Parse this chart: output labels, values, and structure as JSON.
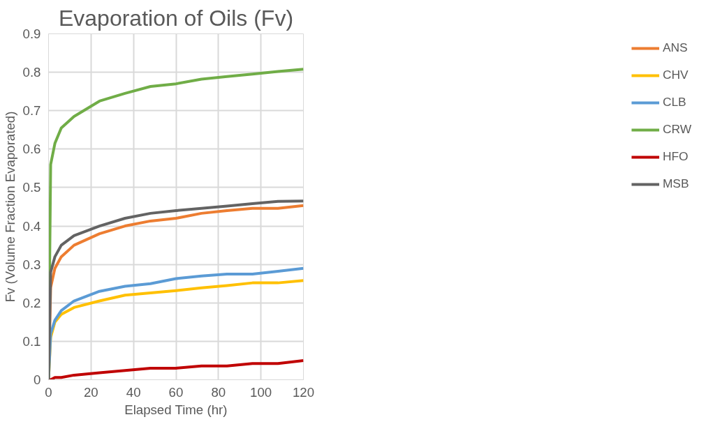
{
  "chart_data": {
    "type": "line",
    "title": "Evaporation of Oils (Fv)",
    "xlabel": "Elapsed Time (hr)",
    "ylabel": "Fv (Volume Fraction Evaporated)",
    "x": [
      0,
      1,
      3,
      6,
      12,
      24,
      36,
      48,
      60,
      72,
      84,
      96,
      108,
      120
    ],
    "series": [
      {
        "name": "ANS",
        "color": "#ed7d31",
        "values": [
          0,
          0.24,
          0.29,
          0.32,
          0.35,
          0.38,
          0.4,
          0.413,
          0.42,
          0.433,
          0.44,
          0.446,
          0.446,
          0.453
        ]
      },
      {
        "name": "CHV",
        "color": "#ffc000",
        "values": [
          0,
          0.11,
          0.15,
          0.17,
          0.188,
          0.205,
          0.22,
          0.226,
          0.232,
          0.239,
          0.245,
          0.252,
          0.252,
          0.258
        ]
      },
      {
        "name": "CLB",
        "color": "#5b9bd5",
        "values": [
          0,
          0.12,
          0.155,
          0.18,
          0.205,
          0.23,
          0.243,
          0.25,
          0.263,
          0.27,
          0.275,
          0.275,
          0.282,
          0.29
        ]
      },
      {
        "name": "CRW",
        "color": "#70ad47",
        "values": [
          0,
          0.56,
          0.615,
          0.655,
          0.685,
          0.725,
          0.745,
          0.763,
          0.77,
          0.782,
          0.789,
          0.795,
          0.802,
          0.808
        ]
      },
      {
        "name": "HFO",
        "color": "#c00000",
        "values": [
          0,
          0,
          0.006,
          0.006,
          0.012,
          0.018,
          0.024,
          0.03,
          0.03,
          0.036,
          0.036,
          0.042,
          0.042,
          0.05
        ]
      },
      {
        "name": "MSB",
        "color": "#636363",
        "values": [
          0,
          0.28,
          0.32,
          0.35,
          0.375,
          0.4,
          0.42,
          0.433,
          0.44,
          0.446,
          0.452,
          0.458,
          0.464,
          0.465
        ]
      }
    ],
    "xlim": [
      0,
      120
    ],
    "xticks": [
      0,
      20,
      40,
      60,
      80,
      100,
      120
    ],
    "ylim": [
      0,
      0.9
    ],
    "yticks": [
      {
        "value": 0,
        "label": "0"
      },
      0.1,
      0.2,
      0.3,
      0.4,
      0.5,
      0.6,
      0.7,
      0.8,
      0.9
    ],
    "grid": true,
    "legend": "right",
    "marker": "none",
    "line_style": "solid"
  }
}
